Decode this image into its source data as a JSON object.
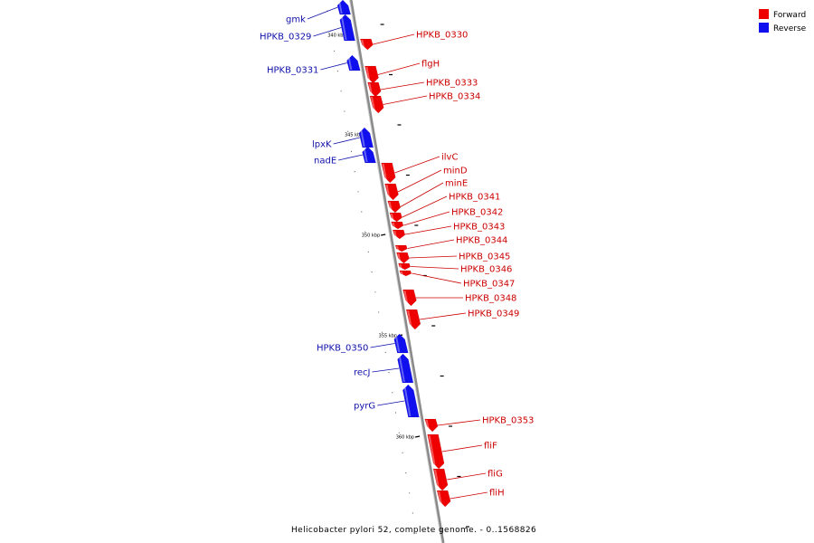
{
  "colors": {
    "forward": "#ee0000",
    "reverse": "#1010ee",
    "backbone": "#9a9a9a",
    "text_forward": "#cc0000",
    "text_reverse": "#1010aa"
  },
  "legend": [
    {
      "label": "Forward",
      "strand": "forward"
    },
    {
      "label": "Reverse",
      "strand": "reverse"
    }
  ],
  "caption": "Helicobacter pylori 52, complete genome. - 0..1568826",
  "ticks": [
    {
      "label": "340 kbp",
      "position_kbp": 340
    },
    {
      "label": "345 kbp",
      "position_kbp": 345
    },
    {
      "label": "350 kbp",
      "position_kbp": 350
    },
    {
      "label": "355 kbp",
      "position_kbp": 355
    },
    {
      "label": "360 kbp",
      "position_kbp": 360
    }
  ],
  "genes": [
    {
      "name": "gmk",
      "strand": "reverse"
    },
    {
      "name": "HPKB_0329",
      "strand": "reverse"
    },
    {
      "name": "HPKB_0330",
      "strand": "forward"
    },
    {
      "name": "HPKB_0331",
      "strand": "reverse"
    },
    {
      "name": "flgH",
      "strand": "forward"
    },
    {
      "name": "HPKB_0333",
      "strand": "forward"
    },
    {
      "name": "HPKB_0334",
      "strand": "forward"
    },
    {
      "name": "lpxK",
      "strand": "reverse"
    },
    {
      "name": "nadE",
      "strand": "reverse"
    },
    {
      "name": "ilvC",
      "strand": "forward"
    },
    {
      "name": "minD",
      "strand": "forward"
    },
    {
      "name": "minE",
      "strand": "forward"
    },
    {
      "name": "HPKB_0341",
      "strand": "forward"
    },
    {
      "name": "HPKB_0342",
      "strand": "forward"
    },
    {
      "name": "HPKB_0343",
      "strand": "forward"
    },
    {
      "name": "HPKB_0344",
      "strand": "forward"
    },
    {
      "name": "HPKB_0345",
      "strand": "forward"
    },
    {
      "name": "HPKB_0346",
      "strand": "forward"
    },
    {
      "name": "HPKB_0347",
      "strand": "forward"
    },
    {
      "name": "HPKB_0348",
      "strand": "forward"
    },
    {
      "name": "HPKB_0349",
      "strand": "forward"
    },
    {
      "name": "HPKB_0350",
      "strand": "reverse"
    },
    {
      "name": "recJ",
      "strand": "reverse"
    },
    {
      "name": "pyrG",
      "strand": "reverse"
    },
    {
      "name": "HPKB_0353",
      "strand": "forward"
    },
    {
      "name": "fliF",
      "strand": "forward"
    },
    {
      "name": "fliG",
      "strand": "forward"
    },
    {
      "name": "fliH",
      "strand": "forward"
    }
  ]
}
